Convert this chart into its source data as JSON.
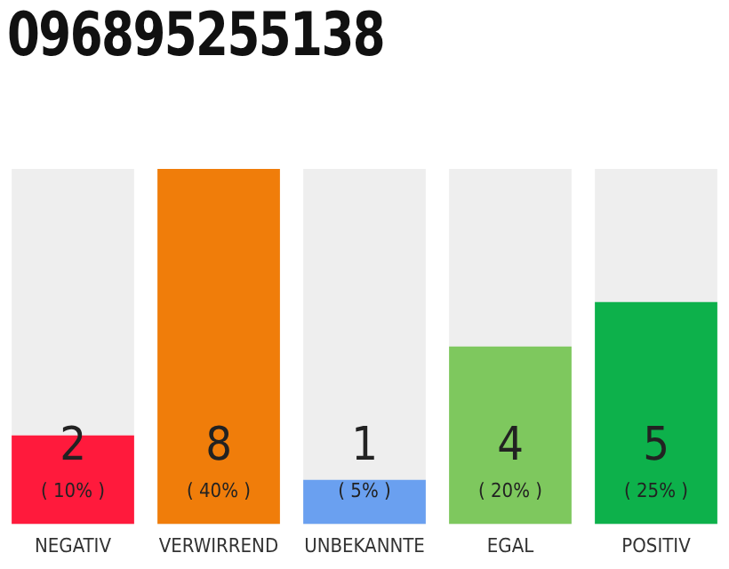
{
  "chart_data": {
    "type": "bar",
    "title": "096895255138",
    "categories": [
      "NEGATIV",
      "VERWIRREND",
      "UNBEKANNTE",
      "EGAL",
      "POSITIV"
    ],
    "values": [
      2,
      8,
      1,
      4,
      5
    ],
    "colors": [
      "#ff1a3c",
      "#f07d0a",
      "#6aa0f0",
      "#7ec85e",
      "#0db14b"
    ],
    "value_labels": [
      "2\n( 10% )",
      "8\n( 40% )",
      "1\n( 5% )",
      "4\n( 20% )",
      "5\n( 25% )"
    ],
    "grid": false,
    "legend": false
  }
}
